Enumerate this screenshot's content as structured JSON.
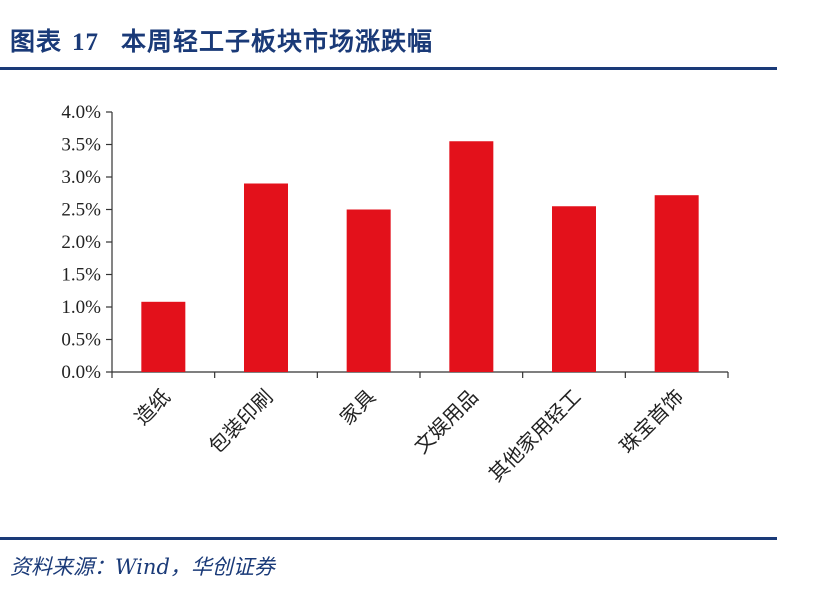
{
  "header": {
    "figure_label": "图表",
    "figure_number": "17",
    "title": "本周轻工子板块市场涨跌幅"
  },
  "footer": {
    "source": "资料来源：Wind，华创证券"
  },
  "chart_data": {
    "type": "bar",
    "categories": [
      "造纸",
      "包装印刷",
      "家具",
      "文娱用品",
      "其他家用轻工",
      "珠宝首饰"
    ],
    "values": [
      1.08,
      2.9,
      2.5,
      3.55,
      2.55,
      2.72
    ],
    "unit": "%",
    "ylim": [
      0,
      4.0
    ],
    "yticks": [
      "0.0%",
      "0.5%",
      "1.0%",
      "1.5%",
      "2.0%",
      "2.5%",
      "3.0%",
      "3.5%",
      "4.0%"
    ],
    "bar_color": "#e3111b",
    "grid": false,
    "legend": "none"
  }
}
